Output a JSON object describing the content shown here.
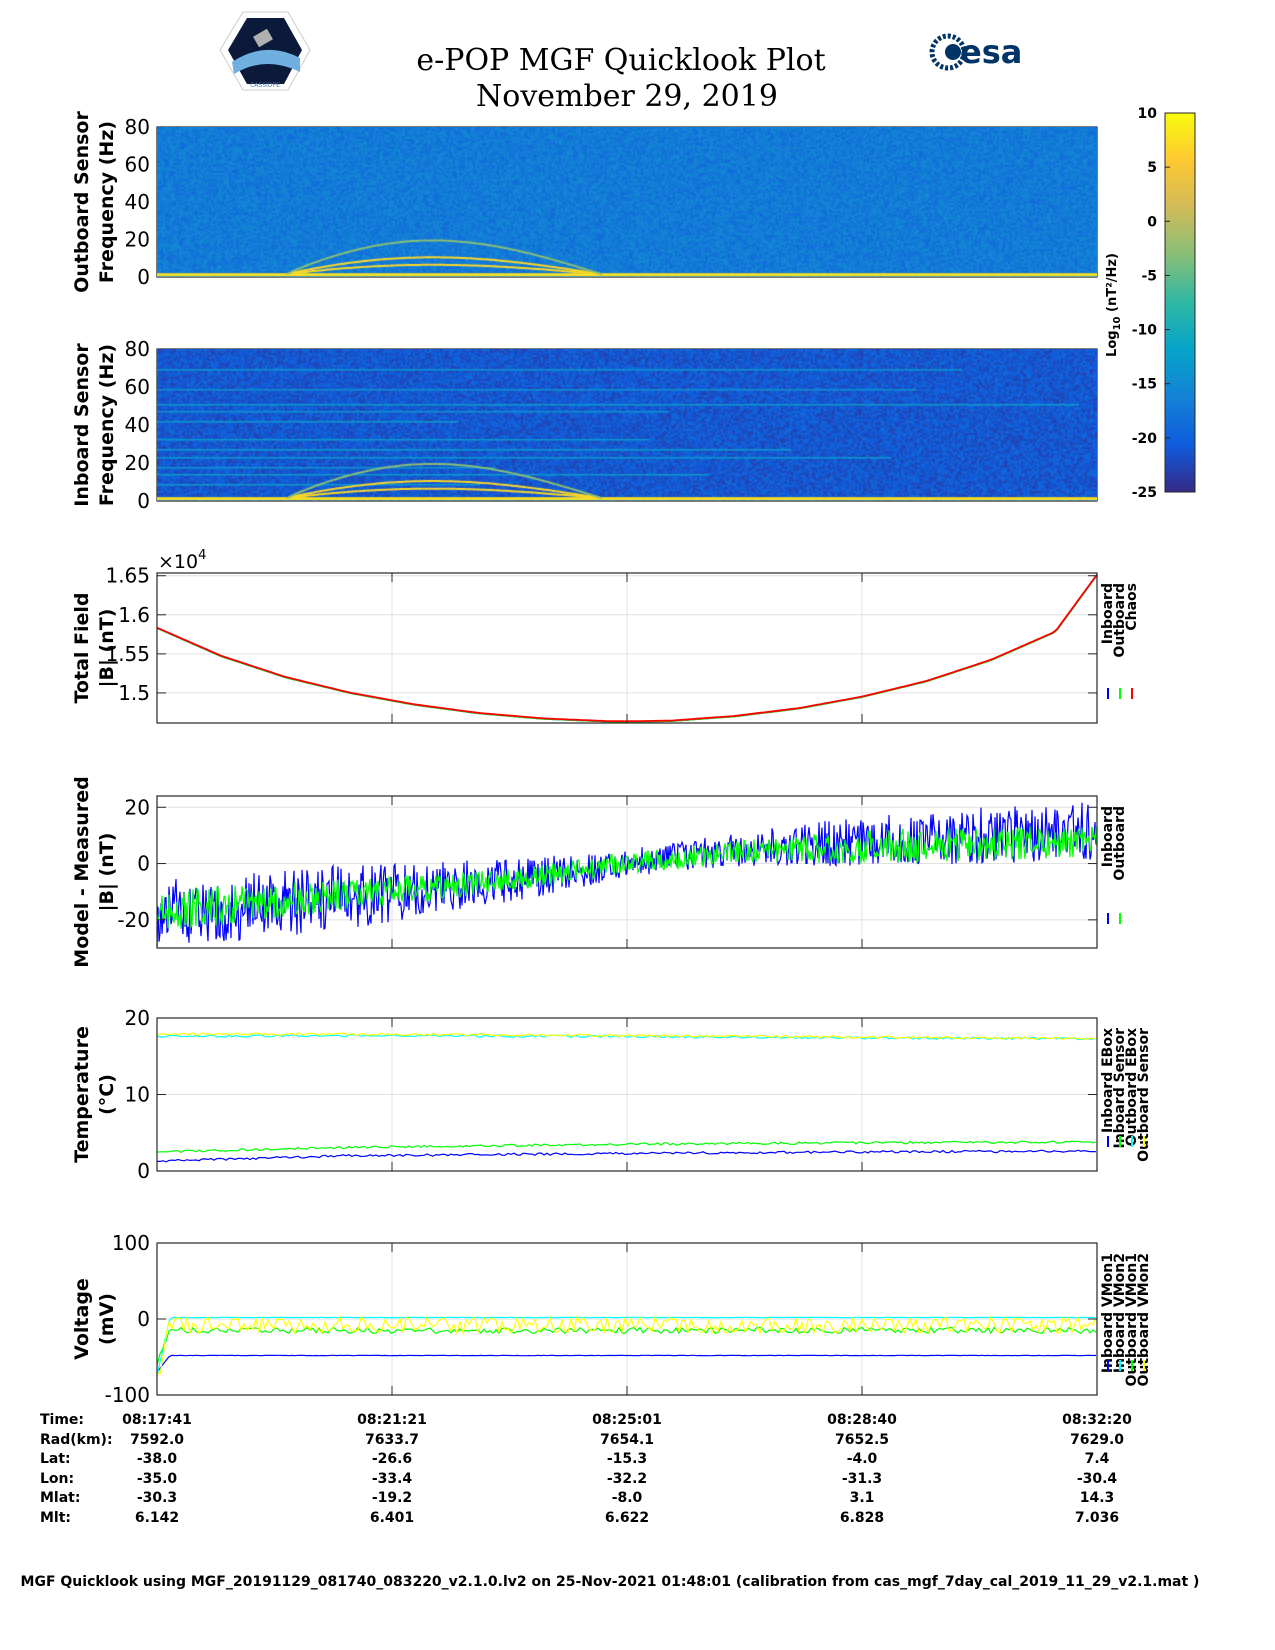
{
  "header": {
    "title": "e-POP MGF Quicklook Plot",
    "date": "November 29, 2019",
    "logo_left": "CASSIOPE",
    "logo_right": "esa"
  },
  "colors": {
    "blue": "#0000ff",
    "green": "#00ff00",
    "cyan": "#00ffff",
    "yellow": "#ffff00",
    "red": "#ff0000",
    "parula": [
      "#352a87",
      "#0f5cdd",
      "#1481d6",
      "#06a4ca",
      "#2eb7a4",
      "#87bf77",
      "#d1bb59",
      "#fec832",
      "#f9fb0e"
    ]
  },
  "chart_data": [
    {
      "type": "heatmap",
      "name": "outboard_spectrogram",
      "ylabel": [
        "Outboard Sensor",
        "Frequency (Hz)"
      ],
      "ylim": [
        0,
        80
      ],
      "yticks": [
        "80",
        "60",
        "40",
        "20",
        "0"
      ],
      "background_log10": -17,
      "harmonics_hz": [
        2,
        5,
        9,
        18
      ]
    },
    {
      "type": "heatmap",
      "name": "inboard_spectrogram",
      "ylabel": [
        "Inboard Sensor",
        "Frequency (Hz)"
      ],
      "ylim": [
        0,
        80
      ],
      "yticks": [
        "80",
        "60",
        "40",
        "20",
        "0"
      ],
      "background_log10": -21,
      "harmonics_hz": [
        2,
        5,
        9,
        18
      ]
    },
    {
      "type": "colorbar",
      "name": "colorbar",
      "label": "Log10 (nT²/Hz)",
      "label_base": "Log",
      "label_sub": "10",
      "label_unit": " (nT²/Hz)",
      "clim": [
        -25,
        10
      ],
      "ticks": [
        "10",
        "5",
        "0",
        "-5",
        "-10",
        "-15",
        "-20",
        "-25"
      ]
    },
    {
      "type": "line",
      "name": "total_field",
      "ylabel": [
        "Total Field",
        "|B| (nT)"
      ],
      "exponent_label": "×10",
      "exponent": "4",
      "ylim": [
        14615,
        16535
      ],
      "yticks": [
        "1.65",
        "1.6",
        "1.55",
        "1.5"
      ],
      "ytick_values": [
        16500,
        16000,
        15500,
        15000
      ],
      "t_min": [
        0,
        1,
        2,
        3,
        4,
        5,
        6,
        7,
        7.3,
        8,
        9,
        10,
        11,
        12,
        13,
        14,
        14.65
      ],
      "series": [
        {
          "name": "Inboard",
          "color": "#0000ff",
          "values": [
            15830,
            15470,
            15200,
            15000,
            14850,
            14740,
            14670,
            14635,
            14632,
            14640,
            14700,
            14800,
            14950,
            15150,
            15420,
            15780,
            16510
          ]
        },
        {
          "name": "Outboard",
          "color": "#00ff00",
          "values": [
            15830,
            15470,
            15200,
            15000,
            14850,
            14740,
            14670,
            14635,
            14632,
            14640,
            14700,
            14800,
            14950,
            15150,
            15420,
            15780,
            16510
          ]
        },
        {
          "name": "Chaos",
          "color": "#ff0000",
          "values": [
            15835,
            15475,
            15205,
            15005,
            14855,
            14745,
            14675,
            14640,
            14637,
            14645,
            14705,
            14805,
            14955,
            15155,
            15425,
            15785,
            16515
          ]
        }
      ]
    },
    {
      "type": "line",
      "name": "model_minus_measured",
      "ylabel": [
        "Model - Measured",
        "|B| (nT)"
      ],
      "ylim": [
        -30,
        24
      ],
      "yticks": [
        "20",
        "0",
        "-20"
      ],
      "ytick_values": [
        20,
        0,
        -20
      ],
      "t_min": [
        0,
        1.5,
        2.5,
        4,
        5.5,
        7.3,
        9,
        11,
        14.65
      ],
      "series": [
        {
          "name": "Inboard",
          "color": "#0000ff",
          "mean": [
            -18,
            -15,
            -13,
            -10,
            -6,
            0,
            5,
            8,
            12
          ],
          "amplitude": [
            12,
            12,
            12,
            10,
            8,
            5,
            6,
            9,
            11
          ]
        },
        {
          "name": "Outboard",
          "color": "#00ff00",
          "mean": [
            -17,
            -14,
            -12,
            -9,
            -6,
            0,
            4,
            6,
            8
          ],
          "amplitude": [
            7,
            7,
            6,
            5,
            4,
            4,
            4,
            6,
            6
          ]
        }
      ]
    },
    {
      "type": "line",
      "name": "temperature",
      "ylabel": [
        "Temperature",
        "(°C)"
      ],
      "ylim": [
        0,
        20
      ],
      "yticks": [
        "20",
        "10",
        "0"
      ],
      "ytick_values": [
        20,
        10,
        0
      ],
      "t_min": [
        0,
        3,
        7.3,
        11,
        14.65
      ],
      "series": [
        {
          "name": "Inboard EBox",
          "color": "#0000ff",
          "values": [
            1.3,
            2.0,
            2.3,
            2.5,
            2.6
          ]
        },
        {
          "name": "Inboard Sensor",
          "color": "#00ff00",
          "values": [
            2.5,
            3.1,
            3.5,
            3.7,
            3.8
          ]
        },
        {
          "name": "Outboard EBox",
          "color": "#00ffff",
          "values": [
            17.6,
            17.7,
            17.6,
            17.4,
            17.3
          ]
        },
        {
          "name": "Outboard Sensor",
          "color": "#ffff00",
          "values": [
            17.9,
            17.9,
            17.7,
            17.5,
            17.3
          ]
        }
      ]
    },
    {
      "type": "line",
      "name": "voltage",
      "ylabel": [
        "Voltage",
        "(mV)"
      ],
      "ylim": [
        -100,
        100
      ],
      "yticks": [
        "100",
        "0",
        "-100"
      ],
      "ytick_values": [
        100,
        0,
        -100
      ],
      "t_min": [
        0,
        0.2,
        14.65
      ],
      "series": [
        {
          "name": "Inboard VMon1",
          "color": "#0000ff",
          "values": [
            -70,
            -48,
            -48
          ]
        },
        {
          "name": "Inboard VMon2",
          "color": "#00ffff",
          "values": [
            -75,
            2,
            2
          ]
        },
        {
          "name": "Outboard VMon1",
          "color": "#00ff00",
          "values": [
            -60,
            -15,
            -15
          ]
        },
        {
          "name": "Outboard VMon2",
          "color": "#ffff00",
          "values": [
            -80,
            -8,
            -8
          ]
        }
      ]
    }
  ],
  "table": {
    "labels": [
      "Time:",
      "Rad(km):",
      "Lat:",
      "Lon:",
      "Mlat:",
      "Mlt:"
    ],
    "columns": [
      [
        "08:17:41",
        "7592.0",
        "-38.0",
        "-35.0",
        "-30.3",
        "6.142"
      ],
      [
        "08:21:21",
        "7633.7",
        "-26.6",
        "-33.4",
        "-19.2",
        "6.401"
      ],
      [
        "08:25:01",
        "7654.1",
        "-15.3",
        "-32.2",
        "-8.0",
        "6.622"
      ],
      [
        "08:28:40",
        "7652.5",
        "-4.0",
        "-31.3",
        "3.1",
        "6.828"
      ],
      [
        "08:32:20",
        "7629.0",
        "7.4",
        "-30.4",
        "14.3",
        "7.036"
      ]
    ]
  },
  "footer": "MGF Quicklook using MGF_20191129_081740_083220_v2.1.0.lv2 on 25-Nov-2021 01:48:01 (calibration from cas_mgf_7day_cal_2019_11_29_v2.1.mat )"
}
